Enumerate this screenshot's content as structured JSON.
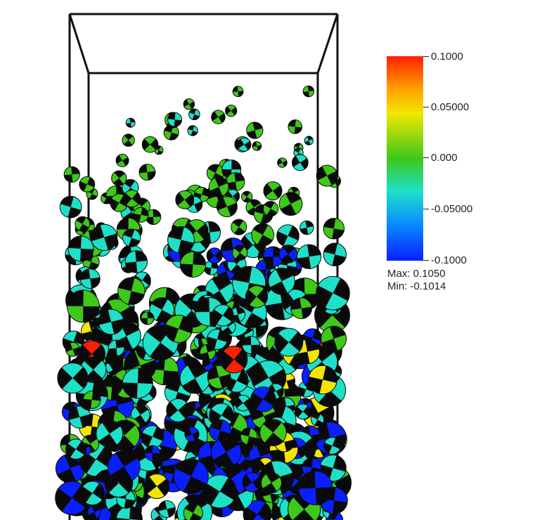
{
  "colorbar": {
    "ticks": [
      "0.1000",
      "0.05000",
      "0.000",
      "-0.05000",
      "-0.1000"
    ],
    "max_label": "Max: 0.1050",
    "min_label": "Min: -0.1014"
  },
  "colors": {
    "high": "#ff1f00",
    "upper": "#f2e600",
    "mid": "#3ec81a",
    "lower": "#1ee0c8",
    "low": "#0a1fff",
    "box_edge": "#111111"
  }
}
